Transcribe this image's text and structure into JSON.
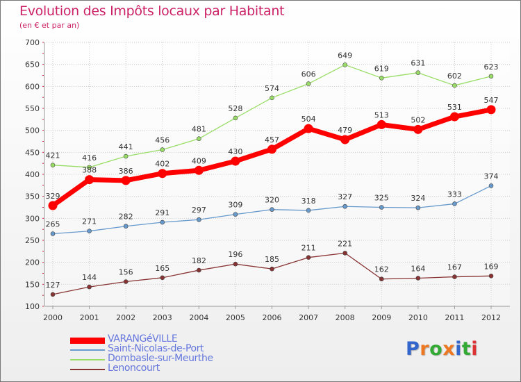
{
  "header": {
    "title": "Evolution des Impôts locaux par Habitant",
    "subtitle": "(en € et par an)"
  },
  "logo": {
    "text": "Proxiti",
    "letter_colors": [
      "#3366cc",
      "#ee7722",
      "#33aa33",
      "#ee7722",
      "#3366cc",
      "#33aa33",
      "#dd3333"
    ]
  },
  "chart_data": {
    "type": "line",
    "title": "Evolution des Impôts locaux par Habitant",
    "subtitle": "(en € et par an)",
    "x": [
      2000,
      2001,
      2002,
      2003,
      2004,
      2005,
      2006,
      2007,
      2008,
      2009,
      2010,
      2011,
      2012
    ],
    "ylim": [
      100,
      700
    ],
    "yticks": [
      100,
      150,
      200,
      250,
      300,
      350,
      400,
      450,
      500,
      550,
      600,
      650,
      700
    ],
    "grid": true,
    "legend": "bottom-left",
    "series": [
      {
        "name": "VARANGéVILLE",
        "color": "#ff0000",
        "emphasis": true,
        "values": [
          329,
          388,
          386,
          402,
          409,
          430,
          457,
          504,
          479,
          513,
          502,
          531,
          547
        ]
      },
      {
        "name": "Saint-Nicolas-de-Port",
        "color": "#6699cc",
        "emphasis": false,
        "values": [
          265,
          271,
          282,
          291,
          297,
          309,
          320,
          318,
          327,
          325,
          324,
          333,
          374
        ]
      },
      {
        "name": "Dombasle-sur-Meurthe",
        "color": "#99dd66",
        "emphasis": false,
        "values": [
          421,
          416,
          441,
          456,
          481,
          528,
          574,
          606,
          649,
          619,
          631,
          602,
          623
        ]
      },
      {
        "name": "Lenoncourt",
        "color": "#883333",
        "emphasis": false,
        "values": [
          127,
          144,
          156,
          165,
          182,
          196,
          185,
          211,
          221,
          162,
          164,
          167,
          169
        ]
      }
    ]
  }
}
